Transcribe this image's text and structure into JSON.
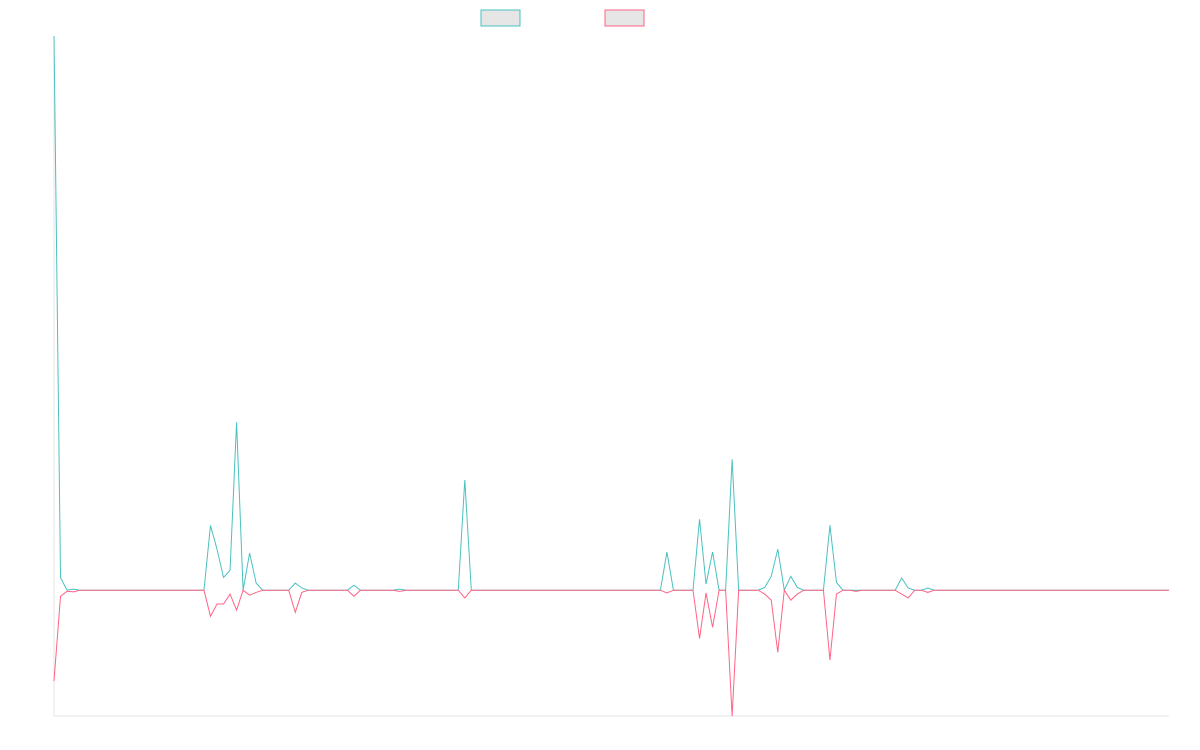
{
  "chart_data": {
    "type": "line",
    "ylim": [
      -22.7,
      100
    ],
    "series": [
      {
        "color": "#4bc0c0",
        "values": [
          100,
          2.3,
          0,
          0.2,
          0,
          0,
          0,
          0,
          0,
          0,
          0,
          0,
          0,
          0,
          0,
          0,
          0,
          0,
          0,
          0,
          0,
          0,
          0,
          0,
          11.7,
          7.4,
          2.3,
          3.6,
          30.3,
          0,
          6.7,
          1.3,
          0,
          0,
          0,
          0,
          0,
          1.3,
          0.4,
          0,
          0,
          0,
          0,
          0,
          0,
          0,
          0.9,
          0,
          0,
          0,
          0,
          0,
          0,
          0.2,
          0,
          0,
          0,
          0,
          0,
          0,
          0,
          0,
          0,
          19.9,
          0,
          0,
          0,
          0,
          0,
          0,
          0,
          0,
          0,
          0,
          0,
          0,
          0,
          0,
          0,
          0,
          0,
          0,
          0,
          0,
          0,
          0,
          0,
          0,
          0,
          0,
          0,
          0,
          0,
          0,
          6.9,
          0,
          0,
          0,
          0,
          12.8,
          1.1,
          6.9,
          0,
          0,
          23.6,
          0,
          0,
          0,
          0,
          0.5,
          2.5,
          7.4,
          0,
          2.5,
          0.5,
          0,
          0,
          0,
          0,
          11.7,
          1.4,
          0,
          0,
          0,
          0,
          0,
          0,
          0,
          0,
          0,
          2.2,
          0.4,
          0,
          0,
          0.4,
          0,
          0,
          0,
          0,
          0,
          0,
          0,
          0,
          0,
          0,
          0,
          0,
          0,
          0,
          0,
          0,
          0,
          0,
          0,
          0,
          0,
          0,
          0,
          0,
          0,
          0,
          0,
          0,
          0,
          0,
          0,
          0,
          0,
          0,
          0,
          0,
          0
        ]
      },
      {
        "color": "#ff6384",
        "values": [
          -16.4,
          -1.1,
          -0.2,
          -0.3,
          0,
          0,
          0,
          0,
          0,
          0,
          0,
          0,
          0,
          0,
          0,
          0,
          0,
          0,
          0,
          0,
          0,
          0,
          0,
          0,
          -4.7,
          -2.5,
          -2.5,
          -0.7,
          -3.6,
          0,
          -0.9,
          -0.4,
          0,
          0,
          0,
          0,
          0,
          -4.0,
          -0.4,
          0,
          0,
          0,
          0,
          0,
          0,
          0,
          -1.1,
          0,
          0,
          0,
          0,
          0,
          0,
          -0.2,
          0,
          0,
          0,
          0,
          0,
          0,
          0,
          0,
          0,
          -1.4,
          0,
          0,
          0,
          0,
          0,
          0,
          0,
          0,
          0,
          0,
          0,
          0,
          0,
          0,
          0,
          0,
          0,
          0,
          0,
          0,
          0,
          0,
          0,
          0,
          0,
          0,
          0,
          0,
          0,
          0,
          -0.5,
          0,
          0,
          0,
          0,
          -8.7,
          -0.5,
          -6.7,
          0,
          0,
          -22.7,
          0,
          0,
          0,
          0,
          -0.7,
          -1.8,
          -11.2,
          0,
          -1.8,
          -0.7,
          0,
          0,
          0,
          0,
          -12.6,
          -0.7,
          0,
          0,
          -0.2,
          0,
          0,
          0,
          0,
          0,
          0,
          -0.7,
          -1.4,
          0,
          0,
          -0.4,
          0,
          0,
          0,
          0,
          0,
          0,
          0,
          0,
          0,
          0,
          0,
          0,
          0,
          0,
          0,
          0,
          0,
          0,
          0,
          0,
          0,
          0,
          0,
          0,
          0,
          0,
          0,
          0,
          0,
          0,
          0,
          0,
          0,
          0,
          0,
          0,
          0
        ]
      }
    ]
  }
}
